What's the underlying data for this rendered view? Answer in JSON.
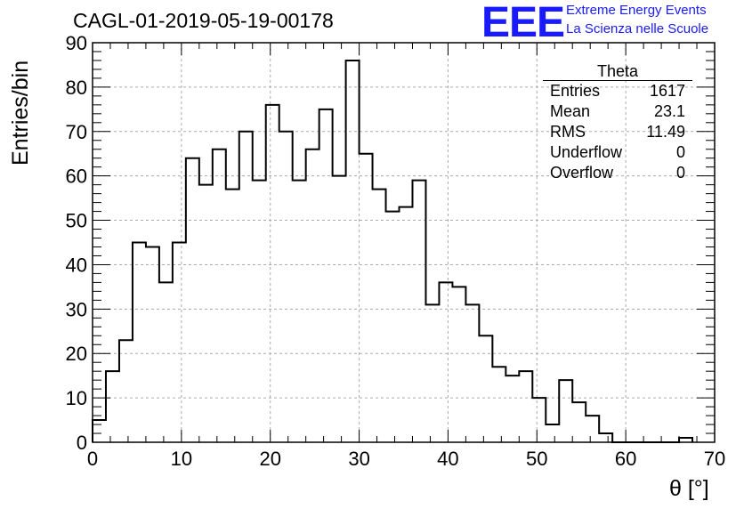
{
  "chart_data": {
    "type": "histogram",
    "title": "CAGL-01-2019-05-19-00178",
    "xlabel": "θ [°]",
    "ylabel": "Entries/bin",
    "xlim": [
      0,
      70
    ],
    "ylim": [
      0,
      90
    ],
    "grid": true,
    "bin_width": 1.5,
    "bin_edges_start": 0,
    "values": [
      5,
      16,
      23,
      45,
      44,
      36,
      45,
      64,
      58,
      66,
      57,
      70,
      59,
      76,
      70,
      59,
      66,
      75,
      60,
      86,
      65,
      57,
      52,
      53,
      59,
      31,
      36,
      35,
      31,
      24,
      17,
      15,
      16,
      10,
      4,
      14,
      9,
      6,
      2,
      0,
      0,
      0,
      0,
      0,
      1
    ],
    "x_ticks": [
      "0",
      "10",
      "20",
      "30",
      "40",
      "50",
      "60",
      "70"
    ],
    "y_ticks": [
      "0",
      "10",
      "20",
      "30",
      "40",
      "50",
      "60",
      "70",
      "80",
      "90"
    ],
    "stats": {
      "title": "Theta",
      "rows": [
        {
          "label": "Entries",
          "value": "1617"
        },
        {
          "label": "Mean",
          "value": "23.1"
        },
        {
          "label": "RMS",
          "value": "11.49"
        },
        {
          "label": "Underflow",
          "value": "0"
        },
        {
          "label": "Overflow",
          "value": "0"
        }
      ]
    }
  },
  "logo": {
    "mark": "EEE",
    "line1": "Extreme Energy Events",
    "line2": "La Scienza nelle Scuole",
    "color": "#1a1aff"
  }
}
